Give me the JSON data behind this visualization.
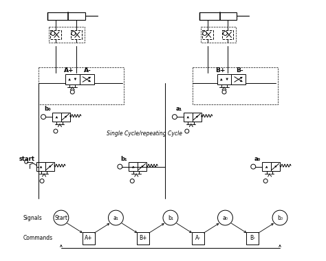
{
  "background": "#ffffff",
  "cycle_text": "Single Cycle/repeating Cycle",
  "signal_label": "Signals",
  "command_label": "Commands",
  "signals": [
    "Start",
    "a₁",
    "b₁",
    "a₀",
    "b₀"
  ],
  "commands": [
    "A+",
    "B+",
    "A-",
    "B-"
  ]
}
